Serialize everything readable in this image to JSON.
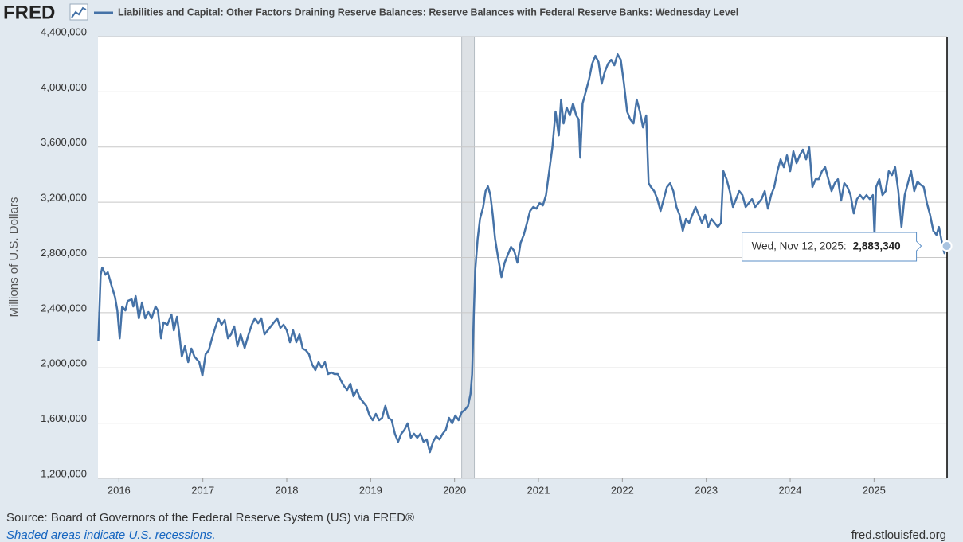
{
  "chart_data": {
    "type": "line",
    "logo": "FRED",
    "title": "Liabilities and Capital: Other Factors Draining Reserve Balances: Reserve Balances with Federal Reserve Banks: Wednesday Level",
    "ylabel": "Millions of U.S. Dollars",
    "source": "Source: Board of Governors of the Federal Reserve System (US) via FRED®",
    "note": "Shaded areas indicate U.S. recessions.",
    "site": "fred.stlouisfed.org",
    "grid": true,
    "xlim": [
      2015.75,
      2025.87
    ],
    "xticks": [
      2016,
      2017,
      2018,
      2019,
      2020,
      2021,
      2022,
      2023,
      2024,
      2025
    ],
    "ylim": [
      1200000,
      4400000
    ],
    "yticks": [
      {
        "value": 1200000,
        "label": "1,200,000"
      },
      {
        "value": 1600000,
        "label": "1,600,000"
      },
      {
        "value": 2000000,
        "label": "2,000,000"
      },
      {
        "value": 2400000,
        "label": "2,400,000"
      },
      {
        "value": 2800000,
        "label": "2,800,000"
      },
      {
        "value": 3200000,
        "label": "3,200,000"
      },
      {
        "value": 3600000,
        "label": "3,600,000"
      },
      {
        "value": 4000000,
        "label": "4,000,000"
      },
      {
        "value": 4400000,
        "label": "4,400,000"
      }
    ],
    "recessions": [
      {
        "start": 2020.085,
        "end": 2020.236
      }
    ],
    "tooltip": {
      "date": "Wed, Nov 12, 2025:",
      "x": 2025.866,
      "value": 2883340,
      "label": "2,883,340"
    },
    "x": [
      2015.754,
      2015.782,
      2015.801,
      2015.839,
      2015.867,
      2015.915,
      2015.953,
      2015.981,
      2016.009,
      2016.038,
      2016.076,
      2016.104,
      2016.152,
      2016.171,
      2016.199,
      2016.237,
      2016.275,
      2016.313,
      2016.351,
      2016.389,
      2016.436,
      2016.464,
      2016.502,
      2016.531,
      2016.578,
      2016.626,
      2016.654,
      2016.692,
      2016.72,
      2016.749,
      2016.787,
      2016.825,
      2016.863,
      2016.9,
      2016.957,
      2016.995,
      2017.033,
      2017.071,
      2017.109,
      2017.147,
      2017.185,
      2017.223,
      2017.261,
      2017.299,
      2017.336,
      2017.374,
      2017.412,
      2017.45,
      2017.498,
      2017.545,
      2017.583,
      2017.621,
      2017.659,
      2017.697,
      2017.735,
      2017.773,
      2017.81,
      2017.848,
      2017.886,
      2017.924,
      2017.962,
      2018.0,
      2018.038,
      2018.076,
      2018.114,
      2018.152,
      2018.19,
      2018.227,
      2018.265,
      2018.303,
      2018.341,
      2018.379,
      2018.417,
      2018.455,
      2018.493,
      2018.531,
      2018.569,
      2018.607,
      2018.645,
      2018.682,
      2018.72,
      2018.758,
      2018.796,
      2018.834,
      2018.872,
      2018.91,
      2018.948,
      2018.986,
      2019.024,
      2019.062,
      2019.1,
      2019.137,
      2019.175,
      2019.213,
      2019.251,
      2019.289,
      2019.327,
      2019.365,
      2019.403,
      2019.441,
      2019.479,
      2019.517,
      2019.555,
      2019.592,
      2019.63,
      2019.668,
      2019.706,
      2019.744,
      2019.782,
      2019.82,
      2019.858,
      2019.896,
      2019.934,
      2019.972,
      2020.009,
      2020.047,
      2020.085,
      2020.123,
      2020.161,
      2020.19,
      2020.209,
      2020.228,
      2020.246,
      2020.275,
      2020.303,
      2020.341,
      2020.37,
      2020.398,
      2020.427,
      2020.455,
      2020.483,
      2020.521,
      2020.559,
      2020.597,
      2020.635,
      2020.673,
      2020.711,
      2020.749,
      2020.787,
      2020.825,
      2020.863,
      2020.9,
      2020.938,
      2020.976,
      2021.014,
      2021.052,
      2021.09,
      2021.128,
      2021.166,
      2021.204,
      2021.242,
      2021.27,
      2021.299,
      2021.336,
      2021.374,
      2021.412,
      2021.45,
      2021.479,
      2021.498,
      2021.526,
      2021.564,
      2021.602,
      2021.64,
      2021.678,
      2021.716,
      2021.754,
      2021.791,
      2021.829,
      2021.867,
      2021.905,
      2021.943,
      2021.981,
      2022.019,
      2022.057,
      2022.095,
      2022.133,
      2022.171,
      2022.209,
      2022.246,
      2022.284,
      2022.313,
      2022.341,
      2022.379,
      2022.417,
      2022.455,
      2022.493,
      2022.531,
      2022.569,
      2022.607,
      2022.645,
      2022.682,
      2022.72,
      2022.758,
      2022.796,
      2022.834,
      2022.872,
      2022.91,
      2022.948,
      2022.986,
      2023.024,
      2023.062,
      2023.1,
      2023.137,
      2023.175,
      2023.204,
      2023.242,
      2023.28,
      2023.318,
      2023.355,
      2023.393,
      2023.431,
      2023.469,
      2023.507,
      2023.545,
      2023.583,
      2023.621,
      2023.659,
      2023.697,
      2023.735,
      2023.773,
      2023.81,
      2023.848,
      2023.886,
      2023.924,
      2023.962,
      2024.0,
      2024.038,
      2024.076,
      2024.114,
      2024.152,
      2024.19,
      2024.227,
      2024.265,
      2024.303,
      2024.341,
      2024.379,
      2024.417,
      2024.455,
      2024.493,
      2024.531,
      2024.569,
      2024.607,
      2024.645,
      2024.682,
      2024.72,
      2024.758,
      2024.796,
      2024.834,
      2024.872,
      2024.91,
      2024.948,
      2024.986,
      2025.005,
      2025.024,
      2025.062,
      2025.1,
      2025.137,
      2025.175,
      2025.213,
      2025.251,
      2025.289,
      2025.327,
      2025.365,
      2025.403,
      2025.441,
      2025.479,
      2025.517,
      2025.555,
      2025.592,
      2025.63,
      2025.668,
      2025.706,
      2025.744,
      2025.773,
      2025.81,
      2025.839,
      2025.866
    ],
    "series": [
      {
        "name": "Liabilities and Capital: Other Factors Draining Reserve Balances: Reserve Balances with Federal Reserve Banks: Wednesday Level",
        "color": "#4572a7",
        "values": [
          2197000,
          2675000,
          2727000,
          2675000,
          2693000,
          2589000,
          2514000,
          2416000,
          2214000,
          2445000,
          2416000,
          2485000,
          2497000,
          2445000,
          2520000,
          2359000,
          2474000,
          2359000,
          2405000,
          2359000,
          2445000,
          2416000,
          2214000,
          2330000,
          2313000,
          2387000,
          2272000,
          2370000,
          2243000,
          2082000,
          2157000,
          2042000,
          2140000,
          2082000,
          2042000,
          1944000,
          2099000,
          2128000,
          2214000,
          2290000,
          2359000,
          2313000,
          2347000,
          2214000,
          2243000,
          2301000,
          2157000,
          2243000,
          2145000,
          2243000,
          2313000,
          2359000,
          2324000,
          2359000,
          2243000,
          2272000,
          2301000,
          2330000,
          2359000,
          2290000,
          2313000,
          2272000,
          2186000,
          2272000,
          2186000,
          2243000,
          2140000,
          2128000,
          2099000,
          2024000,
          1984000,
          2042000,
          2001000,
          2042000,
          1955000,
          1967000,
          1955000,
          1955000,
          1909000,
          1869000,
          1840000,
          1886000,
          1794000,
          1840000,
          1782000,
          1753000,
          1725000,
          1655000,
          1621000,
          1667000,
          1621000,
          1638000,
          1725000,
          1638000,
          1621000,
          1523000,
          1465000,
          1523000,
          1552000,
          1598000,
          1494000,
          1523000,
          1494000,
          1523000,
          1465000,
          1482000,
          1390000,
          1465000,
          1505000,
          1482000,
          1523000,
          1552000,
          1638000,
          1598000,
          1655000,
          1621000,
          1678000,
          1696000,
          1725000,
          1811000,
          1955000,
          2359000,
          2704000,
          2935000,
          3079000,
          3166000,
          3281000,
          3315000,
          3252000,
          3108000,
          2935000,
          2791000,
          2658000,
          2762000,
          2820000,
          2877000,
          2848000,
          2762000,
          2906000,
          2964000,
          3050000,
          3137000,
          3166000,
          3154000,
          3194000,
          3177000,
          3252000,
          3425000,
          3598000,
          3857000,
          3684000,
          3944000,
          3771000,
          3886000,
          3829000,
          3915000,
          3829000,
          3800000,
          3523000,
          3915000,
          4001000,
          4088000,
          4203000,
          4261000,
          4215000,
          4059000,
          4146000,
          4203000,
          4232000,
          4192000,
          4272000,
          4232000,
          4059000,
          3857000,
          3800000,
          3771000,
          3944000,
          3857000,
          3742000,
          3829000,
          3338000,
          3310000,
          3281000,
          3223000,
          3137000,
          3223000,
          3310000,
          3338000,
          3281000,
          3166000,
          3108000,
          2993000,
          3079000,
          3050000,
          3108000,
          3166000,
          3108000,
          3050000,
          3108000,
          3021000,
          3079000,
          3050000,
          3021000,
          3050000,
          3425000,
          3367000,
          3281000,
          3166000,
          3223000,
          3281000,
          3252000,
          3166000,
          3194000,
          3223000,
          3166000,
          3194000,
          3223000,
          3281000,
          3154000,
          3252000,
          3310000,
          3425000,
          3511000,
          3454000,
          3540000,
          3425000,
          3569000,
          3483000,
          3540000,
          3581000,
          3511000,
          3598000,
          3310000,
          3367000,
          3367000,
          3425000,
          3454000,
          3367000,
          3281000,
          3338000,
          3367000,
          3212000,
          3338000,
          3310000,
          3252000,
          3119000,
          3223000,
          3252000,
          3223000,
          3252000,
          3223000,
          3252000,
          2964000,
          3310000,
          3367000,
          3252000,
          3281000,
          3425000,
          3396000,
          3454000,
          3281000,
          3021000,
          3252000,
          3338000,
          3425000,
          3281000,
          3350000,
          3327000,
          3310000,
          3194000,
          3108000,
          2993000,
          2964000,
          3021000,
          2906000,
          2831000,
          2883340
        ]
      }
    ]
  }
}
